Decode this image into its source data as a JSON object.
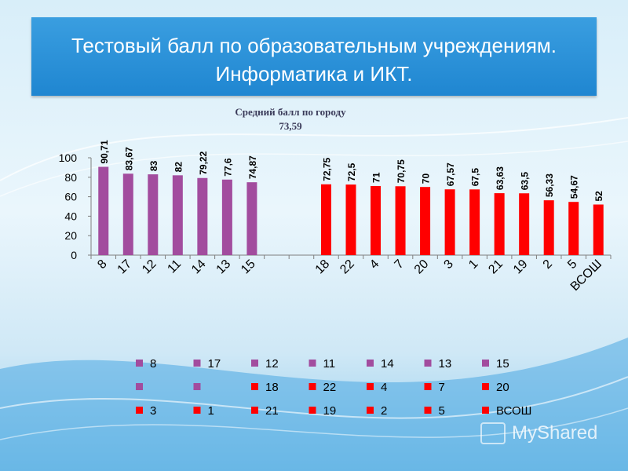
{
  "slide": {
    "title_line1": "Тестовый балл по образовательным учреждениям.",
    "title_line2": "Информатика и ИКТ.",
    "avg_label": "Средний балл по  городу",
    "avg_value": "73,59",
    "watermark": "MyShared"
  },
  "colors": {
    "purple": "#a24c9e",
    "red": "#ff0000",
    "banner": "#2a92d8"
  },
  "chart_data": {
    "type": "bar",
    "ylim": [
      0,
      100
    ],
    "yticks": [
      0,
      20,
      40,
      60,
      80,
      100
    ],
    "grid": false,
    "legend_position": "bottom",
    "categories": [
      "8",
      "17",
      "12",
      "11",
      "14",
      "13",
      "15",
      "",
      "",
      "18",
      "22",
      "4",
      "7",
      "20",
      "3",
      "1",
      "21",
      "19",
      "2",
      "5",
      "ВСОШ"
    ],
    "values": [
      90.71,
      83.67,
      83,
      82,
      79.22,
      77.6,
      74.87,
      null,
      null,
      72.75,
      72.5,
      71,
      70.75,
      70,
      67.57,
      67.5,
      63.63,
      63.5,
      56.33,
      54.67,
      52
    ],
    "data_labels": [
      "90,71",
      "83,67",
      "83",
      "82",
      "79,22",
      "77,6",
      "74,87",
      "",
      "",
      "72,75",
      "72,5",
      "71",
      "70,75",
      "70",
      "67,57",
      "67,5",
      "63,63",
      "63,5",
      "56,33",
      "54,67",
      "52"
    ],
    "bar_colors": [
      "purple",
      "purple",
      "purple",
      "purple",
      "purple",
      "purple",
      "purple",
      "purple",
      "purple",
      "red",
      "red",
      "red",
      "red",
      "red",
      "red",
      "red",
      "red",
      "red",
      "red",
      "red",
      "red"
    ]
  }
}
